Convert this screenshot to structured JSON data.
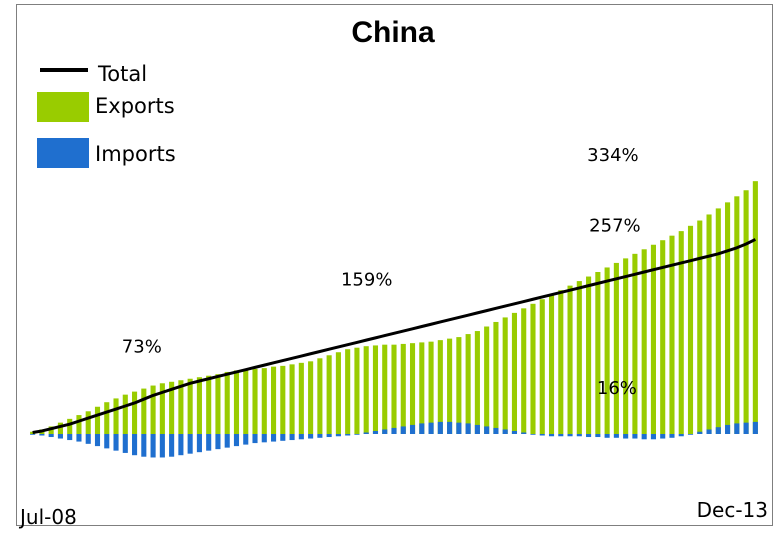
{
  "chart_data": {
    "type": "bar",
    "title": "China",
    "xlabel": "",
    "ylabel": "",
    "x_tick_labels": [
      "Jul-08",
      "Dec-13"
    ],
    "grid": false,
    "legend_position": "top-left",
    "ylim": [
      -75,
      345
    ],
    "colors": {
      "exports": "#99cc00",
      "imports": "#1f6fcf",
      "total": "#000000"
    },
    "legend": [
      {
        "label": "Total",
        "kind": "line",
        "color": "#000000"
      },
      {
        "label": "Exports",
        "kind": "bar",
        "color": "#99cc00"
      },
      {
        "label": "Imports",
        "kind": "bar",
        "color": "#1f6fcf"
      }
    ],
    "annotations": [
      {
        "text": "73%",
        "index": 12,
        "value": 73
      },
      {
        "text": "159%",
        "index": 38,
        "value": 159
      },
      {
        "text": "334%",
        "index": 65,
        "value": 334
      },
      {
        "text": "257%",
        "index": 65,
        "value": 257
      },
      {
        "text": "16%",
        "index": 65,
        "value": 16
      }
    ],
    "series": [
      {
        "name": "Exports",
        "values": [
          3,
          6,
          10,
          15,
          20,
          25,
          30,
          36,
          42,
          47,
          52,
          56,
          60,
          64,
          67,
          69,
          71,
          73,
          75,
          77,
          79,
          82,
          84,
          85,
          86,
          87,
          89,
          90,
          92,
          94,
          96,
          100,
          104,
          108,
          112,
          114,
          116,
          117,
          118,
          118,
          119,
          120,
          121,
          122,
          124,
          126,
          128,
          132,
          136,
          142,
          148,
          154,
          160,
          166,
          172,
          178,
          184,
          190,
          196,
          202,
          208,
          214,
          220,
          226,
          232,
          238,
          244,
          250,
          256,
          262,
          268,
          275,
          282,
          290,
          298,
          306,
          314,
          322,
          334
        ]
      },
      {
        "name": "Imports",
        "values": [
          -1,
          -2,
          -4,
          -6,
          -8,
          -10,
          -13,
          -16,
          -19,
          -22,
          -25,
          -28,
          -30,
          -31,
          -31,
          -30,
          -28,
          -26,
          -24,
          -22,
          -20,
          -18,
          -16,
          -14,
          -12,
          -11,
          -10,
          -9,
          -8,
          -7,
          -6,
          -5,
          -4,
          -3,
          -2,
          -1,
          2,
          4,
          6,
          8,
          10,
          12,
          14,
          15,
          16,
          16,
          15,
          14,
          12,
          10,
          8,
          6,
          4,
          2,
          -1,
          -2,
          -3,
          -3,
          -3,
          -3,
          -4,
          -4,
          -5,
          -5,
          -6,
          -6,
          -7,
          -7,
          -6,
          -5,
          -3,
          -1,
          3,
          6,
          9,
          12,
          14,
          15,
          16
        ]
      },
      {
        "name": "Total",
        "values": [
          2,
          4,
          7,
          10,
          13,
          17,
          21,
          25,
          29,
          33,
          37,
          41,
          46,
          51,
          55,
          59,
          63,
          67,
          70,
          73,
          76,
          79,
          82,
          85,
          88,
          91,
          94,
          97,
          100,
          103,
          106,
          109,
          112,
          115,
          118,
          121,
          124,
          127,
          130,
          133,
          136,
          139,
          142,
          145,
          148,
          151,
          154,
          157,
          160,
          163,
          166,
          169,
          172,
          175,
          178,
          181,
          184,
          187,
          190,
          193,
          196,
          199,
          202,
          205,
          208,
          211,
          214,
          217,
          220,
          223,
          226,
          229,
          232,
          235,
          238,
          242,
          246,
          251,
          257
        ]
      }
    ]
  }
}
